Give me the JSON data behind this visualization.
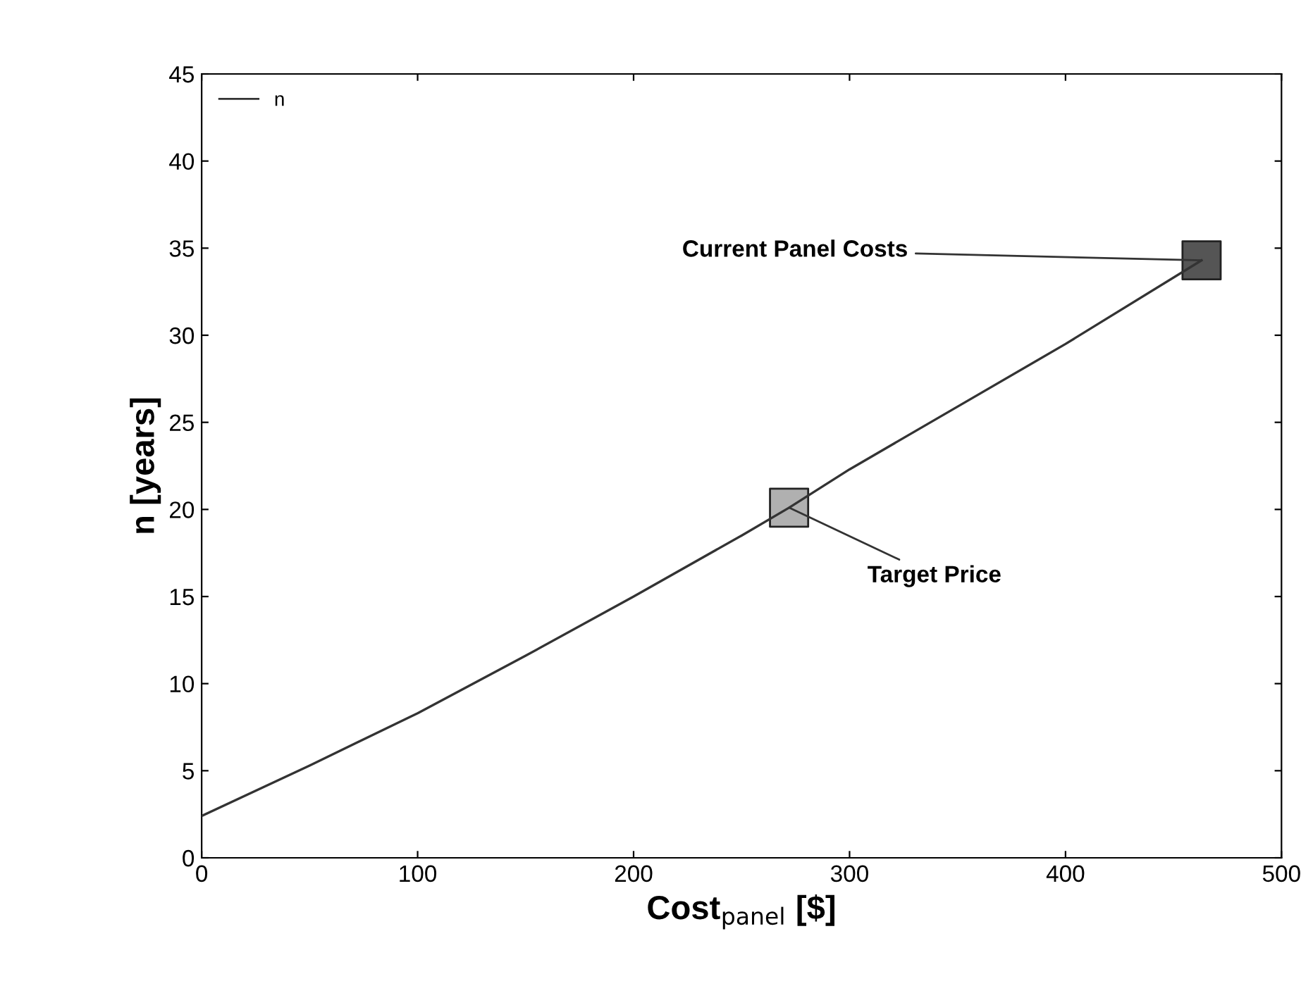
{
  "chart_data": {
    "type": "line",
    "xlabel": "Cost$_{panel}$ [$]",
    "ylabel": "n [years]",
    "series": [
      {
        "name": "n",
        "color": "#333333",
        "x": [
          0,
          50,
          100,
          150,
          200,
          250,
          272,
          300,
          350,
          400,
          463
        ],
        "values": [
          2.4,
          5.3,
          8.3,
          11.6,
          15.0,
          18.5,
          20.1,
          22.3,
          25.9,
          29.5,
          34.3
        ]
      },
      {
        "type": "scatter",
        "marker": "square",
        "color": "#b0b0b0",
        "x": [
          272
        ],
        "values": [
          20.1
        ]
      },
      {
        "type": "scatter",
        "marker": "square",
        "color": "#555555",
        "x": [
          463
        ],
        "values": [
          34.3
        ]
      }
    ],
    "annotations": [
      {
        "text": "Current Panel Costs",
        "x": 463,
        "y": 34.3
      },
      {
        "text": "Target Price",
        "x": 272,
        "y": 20.1
      }
    ],
    "xlim": [
      0,
      500
    ],
    "ylim": [
      0,
      45
    ],
    "xticks": [
      0,
      100,
      200,
      300,
      400,
      500
    ],
    "yticks": [
      0,
      5,
      10,
      15,
      20,
      25,
      30,
      35,
      40,
      45
    ],
    "grid": false,
    "legend": "top left"
  }
}
